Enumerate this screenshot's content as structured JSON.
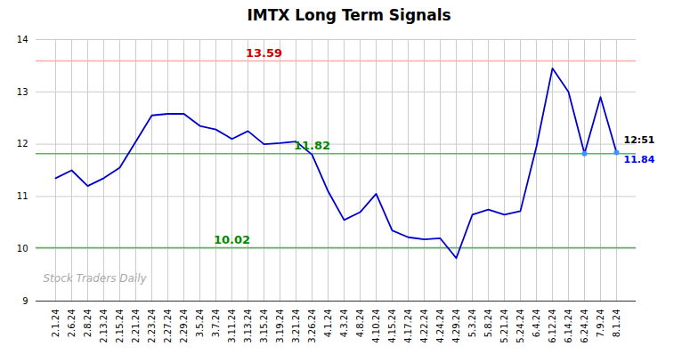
{
  "chart_data": {
    "type": "line",
    "title": "IMTX Long Term Signals",
    "categories": [
      "2.1.24",
      "2.6.24",
      "2.8.24",
      "2.13.24",
      "2.15.24",
      "2.21.24",
      "2.23.24",
      "2.27.24",
      "2.29.24",
      "3.5.24",
      "3.7.24",
      "3.11.24",
      "3.13.24",
      "3.15.24",
      "3.19.24",
      "3.21.24",
      "3.26.24",
      "4.1.24",
      "4.3.24",
      "4.8.24",
      "4.10.24",
      "4.15.24",
      "4.17.24",
      "4.22.24",
      "4.24.24",
      "4.29.24",
      "5.3.24",
      "5.8.24",
      "5.21.24",
      "5.24.24",
      "6.4.24",
      "6.12.24",
      "6.14.24",
      "6.24.24",
      "7.9.24",
      "8.1.24"
    ],
    "values": [
      11.35,
      11.5,
      11.2,
      11.35,
      11.55,
      12.05,
      12.55,
      12.58,
      12.58,
      12.35,
      12.28,
      12.1,
      12.25,
      12.0,
      12.02,
      12.05,
      11.8,
      11.1,
      10.55,
      10.7,
      11.05,
      10.35,
      10.22,
      10.18,
      10.2,
      9.82,
      10.65,
      10.75,
      10.65,
      10.72,
      11.95,
      13.45,
      13.0,
      11.82,
      12.9,
      11.84
    ],
    "color": "#0000cc",
    "ylim": [
      9,
      14
    ],
    "yticks": [
      9,
      10,
      11,
      12,
      13,
      14
    ],
    "grid": true,
    "highlight_points": {
      "color": "#3399ff",
      "points": [
        {
          "x": "6.24.24",
          "y": 11.82
        },
        {
          "x": "8.1.24",
          "y": 11.84
        }
      ]
    },
    "reference_lines": [
      {
        "value": 13.59,
        "label": "13.59",
        "color": "#ffaaaa",
        "label_color": "#cc0000"
      },
      {
        "value": 11.82,
        "label": "11.82",
        "color": "#55bb55",
        "label_color": "#008800"
      },
      {
        "value": 10.02,
        "label": "10.02",
        "color": "#55bb55",
        "label_color": "#008800"
      }
    ],
    "annotations": [
      {
        "text": "12:51",
        "x": "8.1.24",
        "y": 11.84,
        "color": "black"
      },
      {
        "text": "11.84",
        "x": "8.1.24",
        "y": 11.84,
        "color": "blue"
      }
    ],
    "watermark": {
      "text": "Stock Traders Daily",
      "color": "#aaaaaa"
    }
  }
}
